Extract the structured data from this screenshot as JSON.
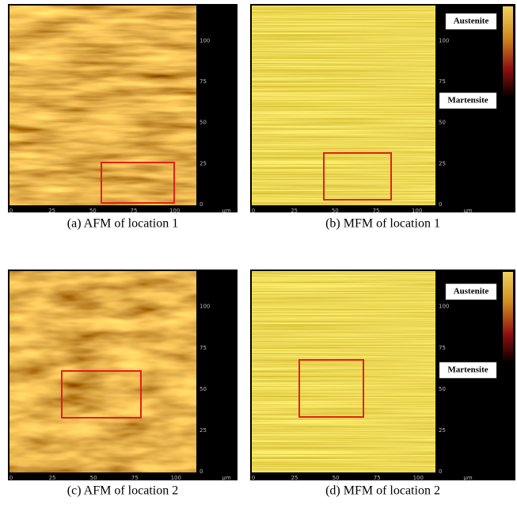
{
  "panels": [
    {
      "caption": "(a) AFM of location 1",
      "x_ticks": [
        "0",
        "25",
        "50",
        "75",
        "100"
      ],
      "y_ticks": [
        "0",
        "25",
        "50",
        "75",
        "100"
      ],
      "unit": "μm"
    },
    {
      "caption": "(b) MFM of location 1",
      "x_ticks": [
        "0",
        "25",
        "50",
        "75",
        "100"
      ],
      "y_ticks": [
        "0",
        "25",
        "50",
        "75",
        "100"
      ],
      "unit": "μm",
      "legend": [
        "Austenite",
        "Martensite"
      ]
    },
    {
      "caption": "(c) AFM of location 2",
      "x_ticks": [
        "0",
        "25",
        "50",
        "75",
        "100"
      ],
      "y_ticks": [
        "0",
        "25",
        "50",
        "75",
        "100"
      ],
      "unit": "μm"
    },
    {
      "caption": "(d) MFM of location 2",
      "x_ticks": [
        "0",
        "25",
        "50",
        "75",
        "100"
      ],
      "y_ticks": [
        "0",
        "25",
        "50",
        "75",
        "100"
      ],
      "unit": "μm",
      "legend": [
        "Austenite",
        "Martensite"
      ]
    }
  ]
}
